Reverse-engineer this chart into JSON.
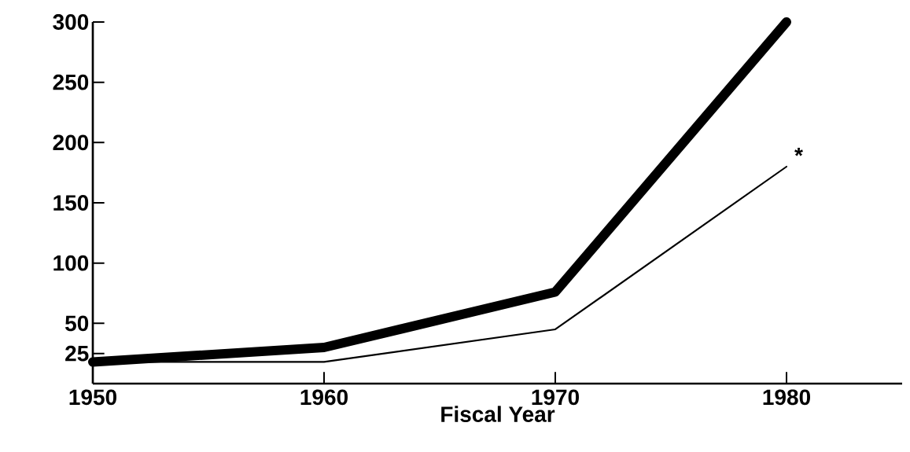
{
  "chart_data": {
    "type": "line",
    "xlabel": "Fiscal Year",
    "x": [
      1950,
      1960,
      1970,
      1980
    ],
    "series": [
      {
        "color": "#000000",
        "values": [
          18,
          30,
          76,
          300
        ]
      },
      {
        "color": "#000000",
        "values": [
          18,
          18,
          45,
          180
        ]
      }
    ],
    "xlim": [
      1950,
      1985
    ],
    "ylim": [
      0,
      300
    ],
    "xticks": [
      1950,
      1960,
      1970,
      1980
    ],
    "yticks": [
      25,
      50,
      100,
      150,
      200,
      250,
      300
    ],
    "annotations": [
      {
        "text": "*",
        "x": 1980,
        "y": 180
      }
    ],
    "marker": "none",
    "line_style": "solid"
  }
}
